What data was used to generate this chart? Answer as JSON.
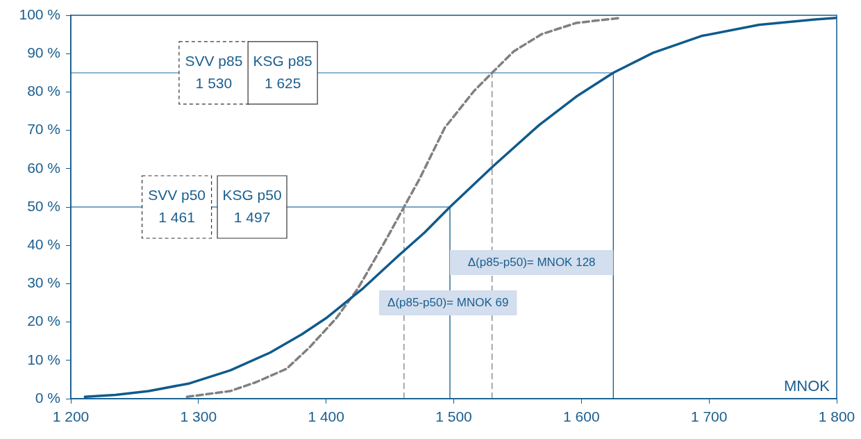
{
  "chart_data": {
    "type": "line",
    "xlabel": "MNOK",
    "xlim": [
      1200,
      1800
    ],
    "xticks": [
      {
        "value": 1200,
        "label": "1 200"
      },
      {
        "value": 1300,
        "label": "1 300"
      },
      {
        "value": 1400,
        "label": "1 400"
      },
      {
        "value": 1500,
        "label": "1 500"
      },
      {
        "value": 1600,
        "label": "1 600"
      },
      {
        "value": 1700,
        "label": "1 700"
      },
      {
        "value": 1800,
        "label": "1 800"
      }
    ],
    "ylim": [
      0,
      100
    ],
    "yticks": [
      {
        "value": 0,
        "label": "0 %"
      },
      {
        "value": 10,
        "label": "10 %"
      },
      {
        "value": 20,
        "label": "20 %"
      },
      {
        "value": 30,
        "label": "30 %"
      },
      {
        "value": 40,
        "label": "40 %"
      },
      {
        "value": 50,
        "label": "50 %"
      },
      {
        "value": 60,
        "label": "60 %"
      },
      {
        "value": 70,
        "label": "70 %"
      },
      {
        "value": 80,
        "label": "80 %"
      },
      {
        "value": 90,
        "label": "90 %"
      },
      {
        "value": 100,
        "label": "100 %"
      }
    ],
    "grid": false,
    "legend": false,
    "marker": "none",
    "series": [
      {
        "color": "#0f5a8c",
        "line_style": "solid",
        "x": [
          1211,
          1235,
          1261,
          1293,
          1325,
          1356,
          1381,
          1400,
          1429,
          1456,
          1477,
          1497,
          1531,
          1567,
          1596,
          1625,
          1656,
          1694,
          1739,
          1783,
          1800
        ],
        "values": [
          0.5,
          1,
          2,
          4,
          7.4,
          12,
          16.8,
          21,
          28.8,
          37.1,
          43.3,
          50,
          60.7,
          71.4,
          78.8,
          85,
          90.2,
          94.6,
          97.5,
          98.9,
          99.3
        ]
      },
      {
        "color": "#808080",
        "line_style": "dashed",
        "x": [
          1291,
          1325,
          1345,
          1369,
          1387,
          1408,
          1425,
          1437,
          1450,
          1461,
          1473,
          1493,
          1516,
          1530,
          1547,
          1569,
          1596,
          1630
        ],
        "values": [
          0.5,
          2,
          4.3,
          7.8,
          13.4,
          21,
          28.8,
          35.7,
          43.3,
          50,
          57.2,
          70.7,
          80.3,
          85,
          90.6,
          95.1,
          98,
          99.3
        ]
      }
    ],
    "ref_lines": [
      {
        "axis": "y",
        "value": 50,
        "color": "#4a86b0",
        "line_style": "solid"
      },
      {
        "axis": "y",
        "value": 85,
        "color": "#4a86b0",
        "line_style": "solid"
      },
      {
        "axis": "x",
        "value": 1461,
        "color": "#808080",
        "line_style": "dashed"
      },
      {
        "axis": "x",
        "value": 1497,
        "color": "#0f5a8c",
        "line_style": "solid"
      },
      {
        "axis": "x",
        "value": 1530,
        "color": "#808080",
        "line_style": "dashed"
      },
      {
        "axis": "x",
        "value": 1625,
        "color": "#0f5a8c",
        "line_style": "solid"
      }
    ],
    "annotations": [
      {
        "text": "SVV p85\n1 530",
        "x": 1312,
        "y": 85
      },
      {
        "text": "KSG p85\n1 625",
        "x": 1366,
        "y": 85
      },
      {
        "text": "SVV p50\n1 461",
        "x": 1283,
        "y": 50
      },
      {
        "text": "KSG p50\n1 497",
        "x": 1342,
        "y": 50
      },
      {
        "text": "Δ(p85-p50)= MNOK 128",
        "x": 1625,
        "y": 35.5
      },
      {
        "text": "Δ(p85-p50)= MNOK 69",
        "x": 1461,
        "y": 25
      }
    ]
  }
}
